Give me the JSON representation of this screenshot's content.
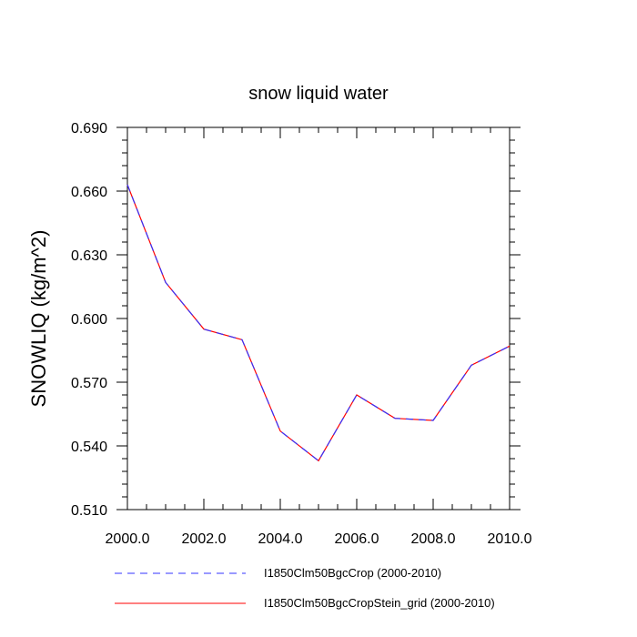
{
  "chart_data": {
    "type": "line",
    "title": "snow liquid water",
    "xlabel": "",
    "ylabel": "SNOWLIQ  (kg/m^2)",
    "xlim": [
      2000.0,
      2010.0
    ],
    "ylim": [
      0.51,
      0.69
    ],
    "x_ticks": [
      "2000.0",
      "2002.0",
      "2004.0",
      "2006.0",
      "2008.0",
      "2010.0"
    ],
    "y_ticks": [
      "0.510",
      "0.540",
      "0.570",
      "0.600",
      "0.630",
      "0.660",
      "0.690"
    ],
    "grid": false,
    "legend_position": "bottom",
    "x": [
      2000,
      2001,
      2002,
      2003,
      2004,
      2005,
      2006,
      2007,
      2008,
      2009,
      2010
    ],
    "series": [
      {
        "name": "I1850Clm50BgcCrop (2000-2010)",
        "color": "#3333ff",
        "style": "dashed",
        "values": [
          0.663,
          0.617,
          0.595,
          0.59,
          0.547,
          0.533,
          0.564,
          0.553,
          0.552,
          0.578,
          0.587
        ]
      },
      {
        "name": "I1850Clm50BgcCropStein_grid (2000-2010)",
        "color": "#ff0000",
        "style": "solid",
        "values": [
          0.663,
          0.617,
          0.595,
          0.59,
          0.547,
          0.533,
          0.564,
          0.553,
          0.552,
          0.578,
          0.587
        ]
      }
    ]
  }
}
